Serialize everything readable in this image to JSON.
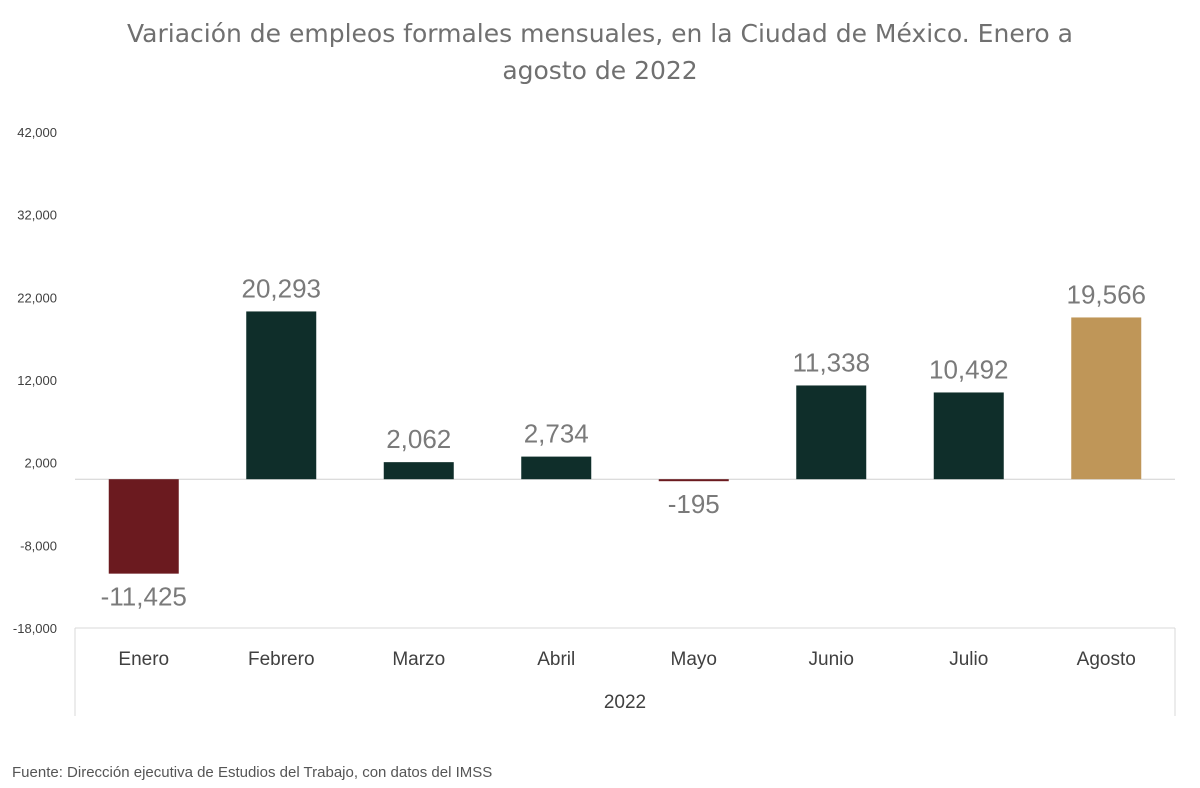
{
  "chart_data": {
    "type": "bar",
    "title": "Variación de empleos formales mensuales, en la Ciudad de México. Enero a agosto de 2022",
    "title_lines": [
      "Variación de empleos formales mensuales, en la Ciudad de México. Enero a",
      "agosto de 2022"
    ],
    "categories": [
      "Enero",
      "Febrero",
      "Marzo",
      "Abril",
      "Mayo",
      "Junio",
      "Julio",
      "Agosto"
    ],
    "group_label": "2022",
    "values": [
      -11425,
      20293,
      2062,
      2734,
      -195,
      11338,
      10492,
      19566
    ],
    "data_labels": [
      "-11,425",
      "20,293",
      "2,062",
      "2,734",
      "-195",
      "11,338",
      "10,492",
      "19,566"
    ],
    "yticks": [
      42000,
      32000,
      22000,
      12000,
      2000,
      -8000,
      -18000
    ],
    "ytick_labels": [
      "42,000",
      "32,000",
      "22,000",
      "12,000",
      "2,000",
      "-8,000",
      "-18,000"
    ],
    "ylim": [
      -18000,
      42000
    ],
    "grid": false,
    "colors": {
      "negative": "#6b1a1f",
      "positive": "#0f2e2a",
      "highlight": "#bf9658"
    },
    "highlight_index": 7,
    "source": "Fuente: Dirección ejecutiva de Estudios del Trabajo, con datos del IMSS"
  }
}
